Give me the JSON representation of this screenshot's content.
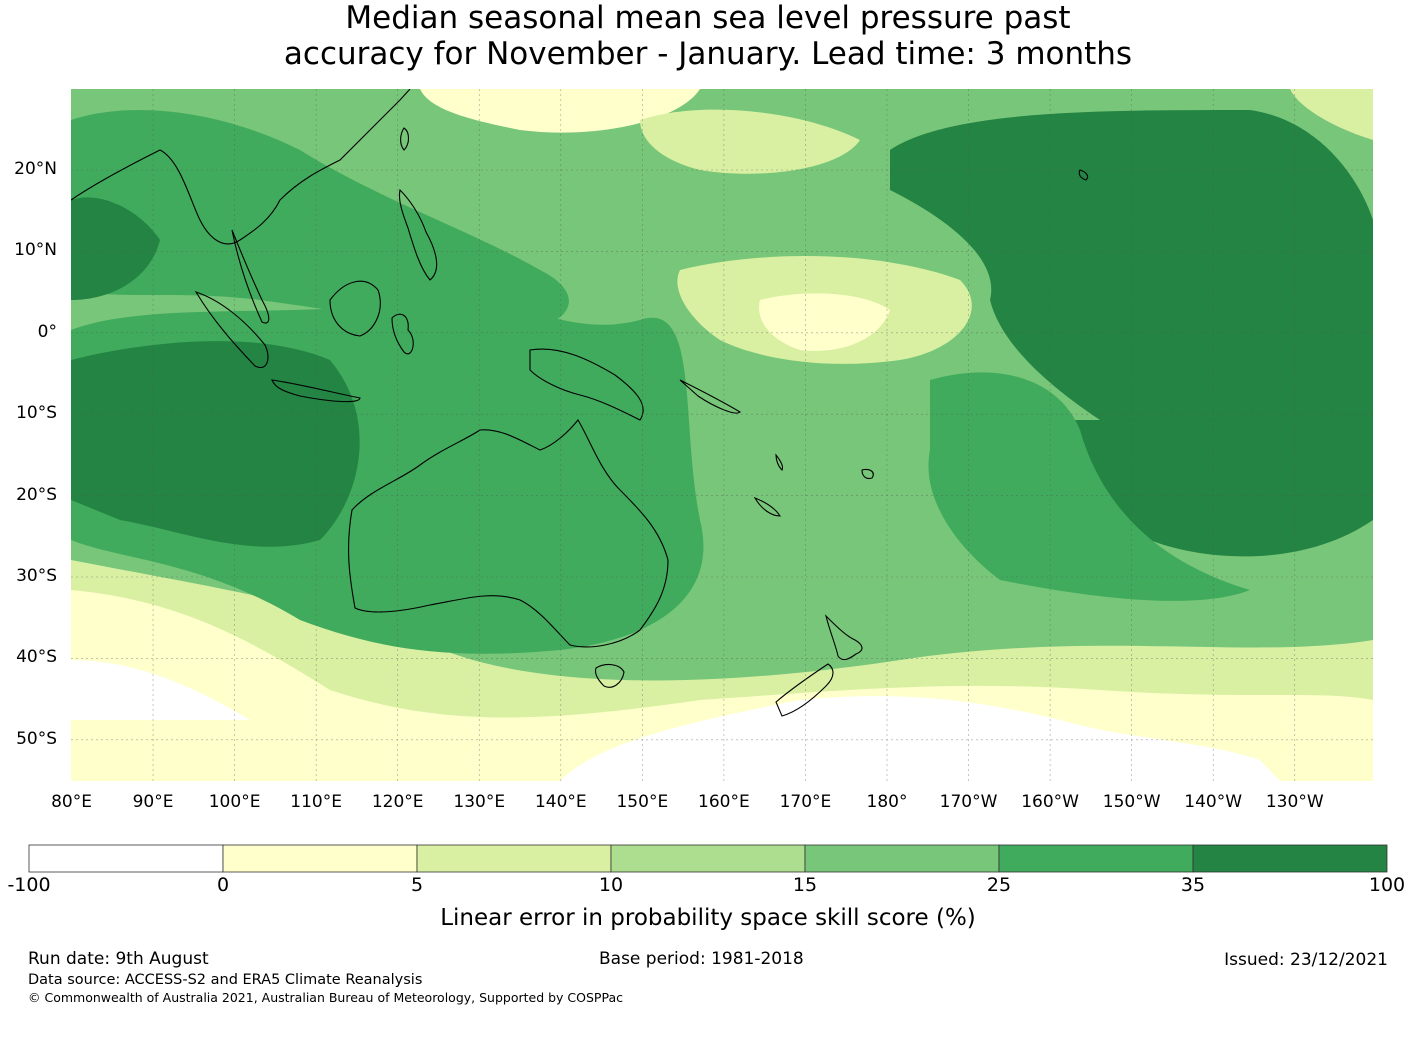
{
  "title": {
    "line1": "Median seasonal mean sea level pressure past",
    "line2": "accuracy for November - January. Lead time: 3 months"
  },
  "map": {
    "longitude_labels": [
      "80°E",
      "90°E",
      "100°E",
      "110°E",
      "120°E",
      "130°E",
      "140°E",
      "150°E",
      "160°E",
      "170°E",
      "180°",
      "170°W",
      "160°W",
      "150°W",
      "140°W",
      "130°W"
    ],
    "latitude_labels": [
      "20°N",
      "10°N",
      "0°",
      "10°S",
      "20°S",
      "30°S",
      "40°S",
      "50°S"
    ],
    "skill_regions": [
      {
        "name": "North Pacific",
        "level": 35
      },
      {
        "name": "Central South Pacific",
        "level": 35
      },
      {
        "name": "Indian Ocean west of Australia",
        "level": 35
      },
      {
        "name": "Maritime Continent",
        "level": 25
      },
      {
        "name": "Australia",
        "level": 25
      },
      {
        "name": "Equatorial Pacific near dateline",
        "level": 5
      },
      {
        "name": "Southern Ocean",
        "level": 0
      }
    ]
  },
  "colorbar": {
    "ticks": [
      "-100",
      "0",
      "5",
      "10",
      "15",
      "25",
      "35",
      "100"
    ],
    "colors": [
      "#ffffff",
      "#ffffcc",
      "#d9f0a3",
      "#addd8e",
      "#78c679",
      "#41ab5d",
      "#238443"
    ],
    "label": "Linear error in probability space skill score (%)"
  },
  "footer": {
    "run_date": "Run date: 9th August",
    "base_period": "Base period: 1981-2018",
    "issued": "Issued: 23/12/2021",
    "data_source": "Data source: ACCESS-S2 and ERA5 Climate Reanalysis",
    "copyright": "© Commonwealth of Australia 2021, Australian Bureau of Meteorology, Supported by COSPPac"
  }
}
